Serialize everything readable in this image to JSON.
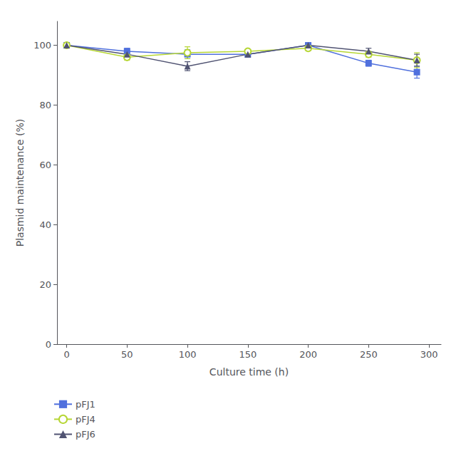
{
  "chart_data": {
    "type": "line",
    "xlabel": "Culture time (h)",
    "ylabel": "Plasmid maintenance (%)",
    "xlim": [
      -8,
      310
    ],
    "ylim": [
      0,
      108
    ],
    "xticks": [
      0,
      50,
      100,
      150,
      200,
      250,
      300
    ],
    "yticks": [
      0,
      20,
      40,
      60,
      80,
      100
    ],
    "grid": false,
    "legend": "lower left",
    "x": [
      0,
      50,
      100,
      150,
      200,
      250,
      290
    ],
    "series": [
      {
        "name": "pFJ1",
        "marker": "square",
        "values": [
          100,
          98,
          97,
          97,
          100,
          94,
          91
        ],
        "yerr": [
          0.3,
          1.0,
          1.5,
          1.0,
          0.5,
          1.0,
          2.0
        ]
      },
      {
        "name": "pFJ4",
        "marker": "open_circle",
        "values": [
          100,
          96,
          97.5,
          98,
          99,
          97,
          95
        ],
        "yerr": [
          0.3,
          1.0,
          2.0,
          0.5,
          0.5,
          1.0,
          2.5
        ]
      },
      {
        "name": "pFJ6",
        "marker": "triangle",
        "values": [
          100,
          97,
          93,
          97,
          100,
          98,
          95
        ],
        "yerr": [
          0.3,
          1.0,
          1.5,
          0.5,
          0.5,
          1.0,
          2.0
        ]
      }
    ]
  }
}
